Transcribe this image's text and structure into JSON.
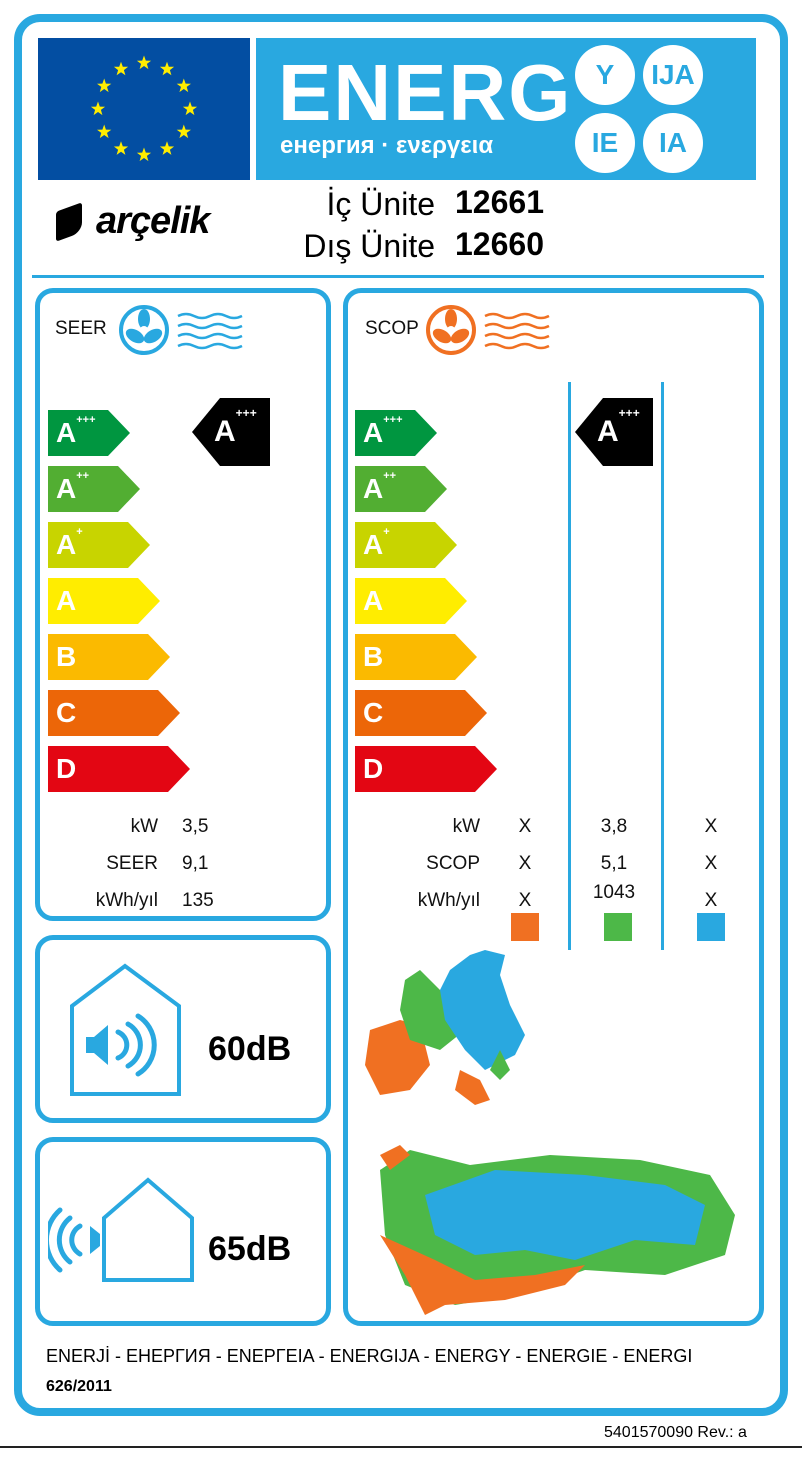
{
  "header": {
    "energy_title": "ENERG",
    "energy_suffixes": [
      "Y",
      "IJA",
      "IE",
      "IA"
    ],
    "energy_subtitle": "енергия · ενεργεια"
  },
  "brand": {
    "logo": "arçelik"
  },
  "units": [
    {
      "label": "İç Ünite",
      "model": "12661"
    },
    {
      "label": "Dış Ünite",
      "model": "12660"
    }
  ],
  "seer": {
    "title": "SEER",
    "icon": "fan-cooling-icon",
    "class": "A+++",
    "scale": [
      {
        "base": "A",
        "plus": "+++",
        "color": "#009640"
      },
      {
        "base": "A",
        "plus": "++",
        "color": "#52ae32"
      },
      {
        "base": "A",
        "plus": "+",
        "color": "#c8d400"
      },
      {
        "base": "A",
        "plus": "",
        "color": "#ffed00"
      },
      {
        "base": "B",
        "plus": "",
        "color": "#fbba00"
      },
      {
        "base": "C",
        "plus": "",
        "color": "#ec6608"
      },
      {
        "base": "D",
        "plus": "",
        "color": "#e30613"
      }
    ],
    "rows": [
      {
        "label": "kW",
        "value": "3,5"
      },
      {
        "label": "SEER",
        "value": "9,1"
      },
      {
        "label": "kWh/yıl",
        "value": "135"
      }
    ]
  },
  "scop": {
    "title": "SCOP",
    "icon": "fan-heating-icon",
    "class": "A+++",
    "rows": [
      {
        "label": "kW",
        "values": [
          "X",
          "3,8",
          "X"
        ]
      },
      {
        "label": "SCOP",
        "values": [
          "X",
          "5,1",
          "X"
        ]
      },
      {
        "label": "kWh/yıl",
        "values": [
          "X",
          "1043",
          "X"
        ]
      }
    ],
    "zone_colors": [
      "#f07022",
      "#4db848",
      "#29a8e0"
    ]
  },
  "noise": [
    {
      "icon": "indoor-speaker-icon",
      "value": "60dB"
    },
    {
      "icon": "outdoor-speaker-icon",
      "value": "65dB"
    }
  ],
  "footer": {
    "languages": "ENERJİ - ЕНЕРГИЯ - ΕΝΕΡΓΕΙΑ - ENERGIJA - ENERGY - ENERGIE - ENERGI",
    "regulation": "626/2011",
    "code": "5401570090 Rev.: a"
  }
}
